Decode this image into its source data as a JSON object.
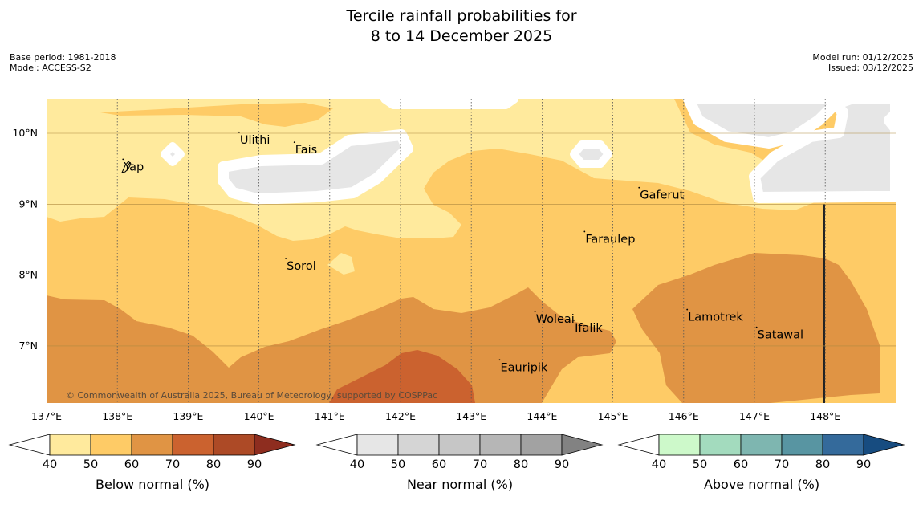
{
  "header": {
    "title_line1": "Tercile rainfall probabilities for",
    "title_line2": "8 to 14 December 2025",
    "base_period": "Base period: 1981-2018",
    "model": "Model: ACCESS-S2",
    "model_run": "Model run: 01/12/2025",
    "issued": "Issued: 03/12/2025"
  },
  "map": {
    "lon_labels": [
      "137°E",
      "138°E",
      "139°E",
      "140°E",
      "141°E",
      "142°E",
      "143°E",
      "144°E",
      "145°E",
      "146°E",
      "147°E",
      "148°E"
    ],
    "lat_labels": [
      "10°N",
      "9°N",
      "8°N",
      "7°N"
    ],
    "lon_range": [
      137,
      149
    ],
    "lat_range": [
      6.2,
      10.5
    ],
    "places": [
      {
        "name": "Yap",
        "lon": 138.08,
        "lat": 9.52
      },
      {
        "name": "Ulithi",
        "lon": 139.72,
        "lat": 9.9
      },
      {
        "name": "Fais",
        "lon": 140.5,
        "lat": 9.76
      },
      {
        "name": "Gaferut",
        "lon": 145.37,
        "lat": 9.12
      },
      {
        "name": "Faraulep",
        "lon": 144.6,
        "lat": 8.5
      },
      {
        "name": "Sorol",
        "lon": 140.38,
        "lat": 8.12
      },
      {
        "name": "Woleai",
        "lon": 143.9,
        "lat": 7.37
      },
      {
        "name": "Ifalik",
        "lon": 144.45,
        "lat": 7.25
      },
      {
        "name": "Lamotrek",
        "lon": 146.05,
        "lat": 7.4
      },
      {
        "name": "Satawal",
        "lon": 147.03,
        "lat": 7.15
      },
      {
        "name": "Eauripik",
        "lon": 143.4,
        "lat": 6.69
      }
    ],
    "copyright": "© Commonwealth of Australia 2025, Bureau of Meteorology, supported by COSPPac"
  },
  "legends": [
    {
      "label": "Below normal (%)",
      "ticks": [
        "40",
        "50",
        "60",
        "70",
        "80",
        "90"
      ],
      "colors": [
        "#FFFFFF",
        "#FFEA9D",
        "#FECB66",
        "#E09444",
        "#CB622F",
        "#AD4A26",
        "#8E2D1F"
      ]
    },
    {
      "label": "Near normal (%)",
      "ticks": [
        "40",
        "50",
        "60",
        "70",
        "80",
        "90"
      ],
      "colors": [
        "#FFFFFF",
        "#E6E6E6",
        "#D5D5D5",
        "#C6C6C6",
        "#B6B6B6",
        "#A2A2A2",
        "#828282"
      ]
    },
    {
      "label": "Above normal (%)",
      "ticks": [
        "40",
        "50",
        "60",
        "70",
        "80",
        "90"
      ],
      "colors": [
        "#FFFFFF",
        "#CDF9CA",
        "#A3DBBE",
        "#7EB6B0",
        "#5895A2",
        "#346A9B",
        "#174C80"
      ]
    }
  ]
}
